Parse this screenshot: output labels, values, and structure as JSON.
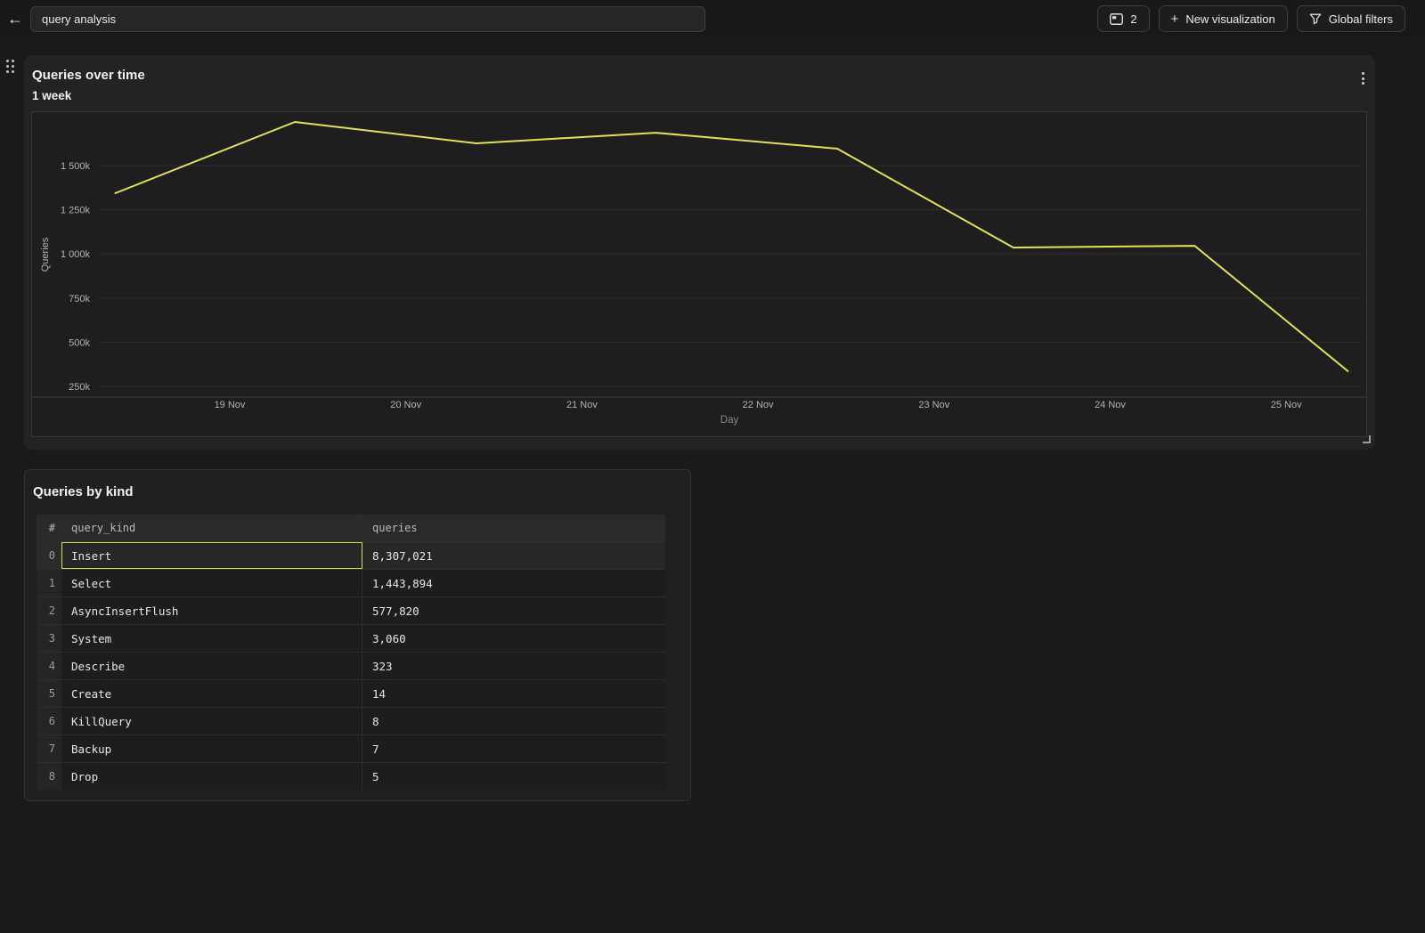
{
  "icons": {
    "back": "←",
    "plus": "+"
  },
  "topbar": {
    "search_value": "query analysis",
    "tab_count": "2",
    "new_visualization_label": "New visualization",
    "global_filters_label": "Global filters"
  },
  "chart_panel": {
    "title": "Queries over time",
    "subtitle": "1 week"
  },
  "table_panel": {
    "title": "Queries by kind",
    "columns": [
      "#",
      "query_kind",
      "queries"
    ],
    "rows": [
      {
        "index": "0",
        "query_kind": "Insert",
        "queries": "8,307,021",
        "selected": true
      },
      {
        "index": "1",
        "query_kind": "Select",
        "queries": "1,443,894",
        "selected": false
      },
      {
        "index": "2",
        "query_kind": "AsyncInsertFlush",
        "queries": "577,820",
        "selected": false
      },
      {
        "index": "3",
        "query_kind": "System",
        "queries": "3,060",
        "selected": false
      },
      {
        "index": "4",
        "query_kind": "Describe",
        "queries": "323",
        "selected": false
      },
      {
        "index": "5",
        "query_kind": "Create",
        "queries": "14",
        "selected": false
      },
      {
        "index": "6",
        "query_kind": "KillQuery",
        "queries": "8",
        "selected": false
      },
      {
        "index": "7",
        "query_kind": "Backup",
        "queries": "7",
        "selected": false
      },
      {
        "index": "8",
        "query_kind": "Drop",
        "queries": "5",
        "selected": false
      }
    ]
  },
  "chart_data": {
    "type": "line",
    "title": "Queries over time",
    "subtitle": "1 week",
    "xlabel": "Day",
    "ylabel": "Queries",
    "x": [
      "18 Nov",
      "19 Nov",
      "20 Nov",
      "21 Nov",
      "22 Nov",
      "23 Nov",
      "24 Nov",
      "25 Nov"
    ],
    "x_days": [
      18.35,
      19.37,
      20.4,
      21.42,
      22.45,
      23.45,
      24.48,
      25.35
    ],
    "values_k": [
      1344,
      1747,
      1626,
      1686,
      1596,
      1036,
      1046,
      336
    ],
    "x_ticks": [
      {
        "day": 19,
        "label": "19 Nov"
      },
      {
        "day": 20,
        "label": "20 Nov"
      },
      {
        "day": 21,
        "label": "21 Nov"
      },
      {
        "day": 22,
        "label": "22 Nov"
      },
      {
        "day": 23,
        "label": "23 Nov"
      },
      {
        "day": 24,
        "label": "24 Nov"
      },
      {
        "day": 25,
        "label": "25 Nov"
      }
    ],
    "y_ticks": [
      {
        "value_k": 1500,
        "label": "1 500k"
      },
      {
        "value_k": 1250,
        "label": "1 250k"
      },
      {
        "value_k": 1000,
        "label": "1 000k"
      },
      {
        "value_k": 750,
        "label": "750k"
      },
      {
        "value_k": 500,
        "label": "500k"
      },
      {
        "value_k": 250,
        "label": "250k"
      }
    ],
    "ylim_k": [
      125,
      1800
    ],
    "grid": true,
    "legend": false,
    "line_color": "#e3e34f"
  },
  "colors": {
    "accent_yellow": "#dcdc4f",
    "page_bg": "#1a1a1a",
    "panel_bg": "#232323",
    "chart_bg": "#1e1e1e",
    "grid_line": "#2d2d2d",
    "axis_text": "#b3b3b3"
  }
}
